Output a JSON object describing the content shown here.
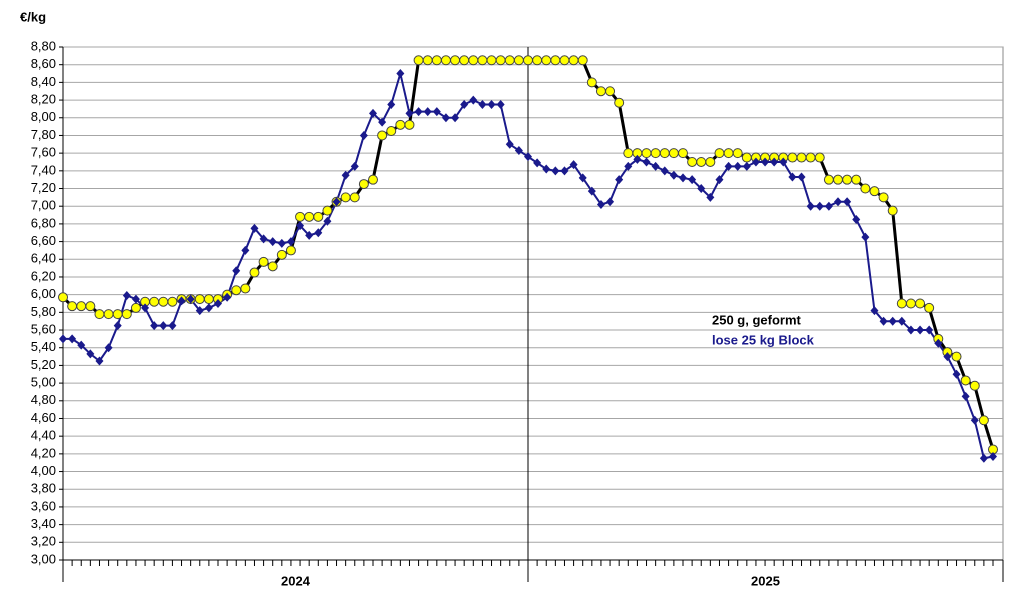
{
  "chart_data": {
    "type": "line",
    "y_axis_label": "€/kg",
    "year_labels": [
      "2024",
      "2025"
    ],
    "categories": [
      null,
      null,
      null,
      null,
      null,
      null,
      null,
      null,
      null,
      null,
      null,
      null,
      null,
      null,
      null,
      null,
      null,
      null,
      null,
      null,
      null,
      null,
      null,
      null,
      null,
      null,
      null,
      null,
      null,
      null,
      null,
      null,
      null,
      null,
      null,
      null,
      null,
      null,
      null,
      null,
      null,
      null,
      null,
      null,
      null,
      null,
      null,
      null,
      null,
      null,
      null,
      null,
      null,
      null,
      null,
      null,
      null,
      null,
      null,
      null,
      null,
      null,
      null,
      null,
      null,
      null,
      null,
      null,
      null,
      null,
      null,
      null,
      null,
      null,
      null,
      null,
      null,
      null,
      null,
      null,
      null,
      null,
      null,
      null,
      null,
      null,
      null,
      null,
      null,
      null,
      null,
      null,
      null,
      null,
      null,
      null,
      null,
      null,
      null,
      null,
      null,
      null,
      null
    ],
    "series": [
      {
        "name": "250 g, geformt",
        "color": "#ffff00",
        "line_color": "#000000",
        "marker": "circle",
        "values": [
          5.97,
          5.87,
          5.87,
          5.87,
          5.78,
          5.78,
          5.78,
          5.78,
          5.85,
          5.92,
          5.92,
          5.92,
          5.92,
          5.95,
          5.95,
          5.95,
          5.95,
          5.95,
          6.0,
          6.05,
          6.07,
          6.25,
          6.37,
          6.32,
          6.45,
          6.5,
          6.88,
          6.88,
          6.88,
          6.95,
          7.05,
          7.1,
          7.1,
          7.25,
          7.3,
          7.8,
          7.85,
          7.92,
          7.92,
          8.65,
          8.65,
          8.65,
          8.65,
          8.65,
          8.65,
          8.65,
          8.65,
          8.65,
          8.65,
          8.65,
          8.65,
          8.65,
          8.65,
          8.65,
          8.65,
          8.65,
          8.65,
          8.65,
          8.4,
          8.3,
          8.3,
          8.17,
          7.6,
          7.6,
          7.6,
          7.6,
          7.6,
          7.6,
          7.6,
          7.5,
          7.5,
          7.5,
          7.6,
          7.6,
          7.6,
          7.55,
          7.55,
          7.55,
          7.55,
          7.55,
          7.55,
          7.55,
          7.55,
          7.55,
          7.3,
          7.3,
          7.3,
          7.3,
          7.2,
          7.17,
          7.1,
          6.95,
          5.9,
          5.9,
          5.9,
          5.85,
          5.5,
          5.35,
          5.3,
          5.03,
          4.97,
          4.58,
          4.25
        ]
      },
      {
        "name": "lose 25 kg Block",
        "color": "#1a1a8c",
        "line_color": "#1a1a8c",
        "marker": "diamond",
        "values": [
          5.5,
          5.5,
          5.43,
          5.33,
          5.25,
          5.4,
          5.65,
          5.99,
          5.95,
          5.85,
          5.65,
          5.65,
          5.65,
          5.93,
          5.95,
          5.82,
          5.85,
          5.9,
          5.97,
          6.27,
          6.5,
          6.75,
          6.63,
          6.6,
          6.58,
          6.6,
          6.78,
          6.67,
          6.7,
          6.83,
          7.05,
          7.35,
          7.45,
          7.8,
          8.05,
          7.95,
          8.15,
          8.5,
          8.05,
          8.07,
          8.07,
          8.07,
          8.0,
          8.0,
          8.15,
          8.2,
          8.15,
          8.15,
          8.15,
          7.7,
          7.63,
          7.56,
          7.49,
          7.42,
          7.4,
          7.4,
          7.47,
          7.32,
          7.17,
          7.02,
          7.05,
          7.3,
          7.45,
          7.53,
          7.5,
          7.45,
          7.4,
          7.35,
          7.32,
          7.3,
          7.2,
          7.1,
          7.3,
          7.45,
          7.45,
          7.45,
          7.5,
          7.5,
          7.5,
          7.5,
          7.33,
          7.33,
          7.0,
          7.0,
          7.0,
          7.05,
          7.05,
          6.85,
          6.65,
          5.82,
          5.7,
          5.7,
          5.7,
          5.6,
          5.6,
          5.6,
          5.45,
          5.3,
          5.1,
          4.85,
          4.58,
          4.15,
          4.17
        ]
      }
    ],
    "ylim": [
      3.0,
      8.8
    ],
    "yticks": [
      {
        "value": 3.0,
        "label": "3,00"
      },
      {
        "value": 3.2,
        "label": "3,20"
      },
      {
        "value": 3.4,
        "label": "3,40"
      },
      {
        "value": 3.6,
        "label": "3,60"
      },
      {
        "value": 3.8,
        "label": "3,80"
      },
      {
        "value": 4.0,
        "label": "4,00"
      },
      {
        "value": 4.2,
        "label": "4,20"
      },
      {
        "value": 4.4,
        "label": "4,40"
      },
      {
        "value": 4.6,
        "label": "4,60"
      },
      {
        "value": 4.8,
        "label": "4,80"
      },
      {
        "value": 5.0,
        "label": "5,00"
      },
      {
        "value": 5.2,
        "label": "5,20"
      },
      {
        "value": 5.4,
        "label": "5,40"
      },
      {
        "value": 5.6,
        "label": "5,60"
      },
      {
        "value": 5.8,
        "label": "5,80"
      },
      {
        "value": 6.0,
        "label": "6,00"
      },
      {
        "value": 6.2,
        "label": "6,20"
      },
      {
        "value": 6.4,
        "label": "6,40"
      },
      {
        "value": 6.6,
        "label": "6,60"
      },
      {
        "value": 6.8,
        "label": "6,80"
      },
      {
        "value": 7.0,
        "label": "7,00"
      },
      {
        "value": 7.2,
        "label": "7,20"
      },
      {
        "value": 7.4,
        "label": "7,40"
      },
      {
        "value": 7.6,
        "label": "7,60"
      },
      {
        "value": 7.8,
        "label": "7,80"
      },
      {
        "value": 8.0,
        "label": "8,00"
      },
      {
        "value": 8.2,
        "label": "8,20"
      },
      {
        "value": 8.4,
        "label": "8,40"
      },
      {
        "value": 8.6,
        "label": "8,60"
      },
      {
        "value": 8.8,
        "label": "8,80"
      }
    ],
    "grid": true
  }
}
